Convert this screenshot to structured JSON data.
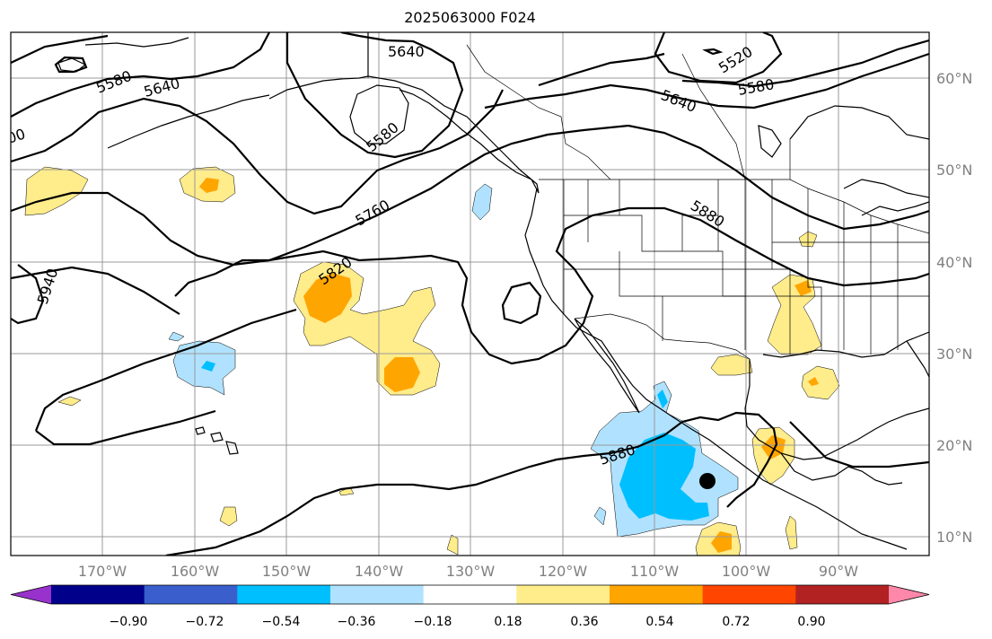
{
  "title": "2025063000 F024",
  "longitude_ticks": [
    "170°W",
    "160°W",
    "150°W",
    "140°W",
    "130°W",
    "120°W",
    "110°W",
    "100°W",
    "90°W"
  ],
  "latitude_ticks": [
    "60°N",
    "50°N",
    "40°N",
    "30°N",
    "20°N",
    "10°N"
  ],
  "contour_labels": [
    "5640",
    "5580",
    "5640",
    "5580",
    "5520",
    "5580",
    "5640",
    "5760",
    "5820",
    "5880",
    "5940",
    "5880",
    "00"
  ],
  "colorbar": {
    "tick_labels": [
      "−0.90",
      "−0.72",
      "−0.54",
      "−0.36",
      "−0.18",
      "0.18",
      "0.36",
      "0.54",
      "0.72",
      "0.90"
    ],
    "colors": [
      "#9932cc",
      "#00008b",
      "#3a5fcd",
      "#00bfff",
      "#b0e2ff",
      "#ffffff",
      "#ffec8b",
      "#ffa500",
      "#ff4500",
      "#b22222",
      "#ff88aa"
    ]
  },
  "shading_colors": {
    "light_blue": "#b0e2ff",
    "blue": "#00bfff",
    "yellow": "#ffec8b",
    "orange": "#ffa500"
  },
  "marker_color": "#000000"
}
